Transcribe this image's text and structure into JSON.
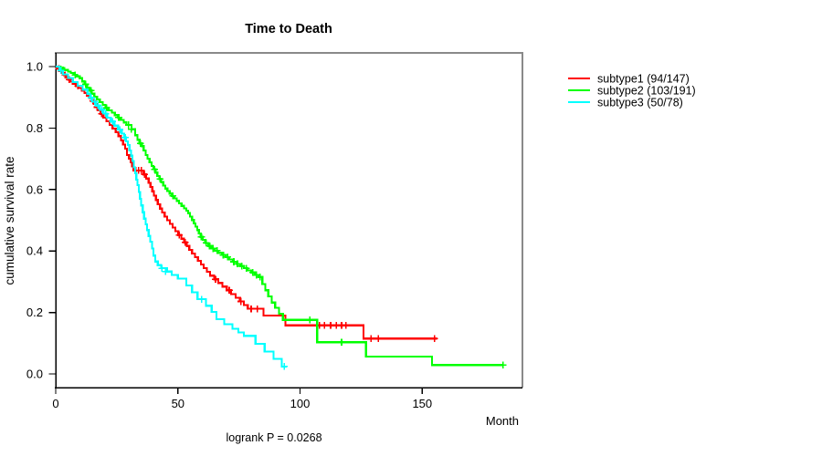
{
  "title": "Time to Death",
  "footer_note": "logrank P = 0.0268",
  "axes": {
    "x_label": "Month",
    "y_label": "cumulative survival rate",
    "x_tick_labels": [
      "0",
      "50",
      "100",
      "150"
    ],
    "x_tick_values": [
      0,
      50,
      100,
      150
    ],
    "y_tick_labels": [
      "0.0",
      "0.2",
      "0.4",
      "0.6",
      "0.8",
      "1.0"
    ],
    "y_tick_values": [
      0,
      0.2,
      0.4,
      0.6,
      0.8,
      1.0
    ]
  },
  "colors": {
    "subtype1": "#ff0000",
    "subtype2": "#00ff00",
    "subtype3": "#00ffff",
    "axis": "#000000",
    "box_top_right": "#898989",
    "background": "#ffffff"
  },
  "legend": {
    "items": [
      {
        "label": "subtype1 (94/147)",
        "color": "#ff0000"
      },
      {
        "label": "subtype2 (103/191)",
        "color": "#00ff00"
      },
      {
        "label": "subtype3 (50/78)",
        "color": "#00ffff"
      }
    ]
  },
  "chart_data": {
    "type": "line",
    "subtype": "kaplan_meier_step",
    "title": "Time to Death",
    "xlabel": "Month",
    "ylabel": "cumulative survival rate",
    "annotation": "logrank P = 0.0268",
    "xlim": [
      0,
      191
    ],
    "ylim": [
      0,
      1
    ],
    "grid": false,
    "legend_position": "right-outside",
    "series": [
      {
        "name": "subtype1 (94/147)",
        "events": 94,
        "n": 147,
        "color": "#ff0000",
        "steps": [
          [
            0,
            1.0
          ],
          [
            1,
            0.993
          ],
          [
            1.8,
            0.986
          ],
          [
            2.6,
            0.979
          ],
          [
            3.4,
            0.972
          ],
          [
            4.2,
            0.965
          ],
          [
            5,
            0.958
          ],
          [
            6,
            0.951
          ],
          [
            7,
            0.944
          ],
          [
            8.2,
            0.937
          ],
          [
            9.4,
            0.93
          ],
          [
            10.6,
            0.922
          ],
          [
            11.8,
            0.914
          ],
          [
            12.8,
            0.906
          ],
          [
            13.8,
            0.898
          ],
          [
            14.8,
            0.888
          ],
          [
            15.7,
            0.878
          ],
          [
            16.6,
            0.868
          ],
          [
            17.5,
            0.858
          ],
          [
            18.4,
            0.846
          ],
          [
            19.5,
            0.834
          ],
          [
            20.7,
            0.822
          ],
          [
            22,
            0.81
          ],
          [
            23.3,
            0.798
          ],
          [
            24.6,
            0.786
          ],
          [
            25.7,
            0.774
          ],
          [
            26.7,
            0.76
          ],
          [
            27.6,
            0.746
          ],
          [
            28.4,
            0.733
          ],
          [
            29.2,
            0.712
          ],
          [
            30,
            0.7
          ],
          [
            30.7,
            0.688
          ],
          [
            31.3,
            0.675
          ],
          [
            31.9,
            0.662
          ],
          [
            36,
            0.649
          ],
          [
            37,
            0.636
          ],
          [
            38,
            0.622
          ],
          [
            38.8,
            0.608
          ],
          [
            39.5,
            0.594
          ],
          [
            40.2,
            0.58
          ],
          [
            41,
            0.566
          ],
          [
            41.8,
            0.552
          ],
          [
            42.7,
            0.538
          ],
          [
            43.6,
            0.525
          ],
          [
            44.6,
            0.512
          ],
          [
            45.6,
            0.5
          ],
          [
            46.7,
            0.488
          ],
          [
            47.8,
            0.476
          ],
          [
            49,
            0.464
          ],
          [
            50.2,
            0.452
          ],
          [
            51.4,
            0.44
          ],
          [
            52.5,
            0.428
          ],
          [
            53.6,
            0.416
          ],
          [
            54.7,
            0.404
          ],
          [
            55.8,
            0.392
          ],
          [
            57,
            0.38
          ],
          [
            58.2,
            0.368
          ],
          [
            59.4,
            0.356
          ],
          [
            60.6,
            0.344
          ],
          [
            61.9,
            0.332
          ],
          [
            63.2,
            0.32
          ],
          [
            64.8,
            0.308
          ],
          [
            66.5,
            0.296
          ],
          [
            68.2,
            0.284
          ],
          [
            70,
            0.272
          ],
          [
            71.8,
            0.26
          ],
          [
            73.6,
            0.248
          ],
          [
            75.4,
            0.236
          ],
          [
            77,
            0.224
          ],
          [
            78.6,
            0.212
          ],
          [
            85,
            0.19
          ],
          [
            94,
            0.158
          ],
          [
            126,
            0.115
          ],
          [
            156,
            0.115
          ]
        ],
        "censors": [
          [
            1.3,
            0.993
          ],
          [
            3.8,
            0.972
          ],
          [
            5.5,
            0.958
          ],
          [
            9,
            0.937
          ],
          [
            15.2,
            0.888
          ],
          [
            17,
            0.868
          ],
          [
            18.8,
            0.846
          ],
          [
            32.8,
            0.662
          ],
          [
            33.9,
            0.662
          ],
          [
            35,
            0.662
          ],
          [
            36.4,
            0.649
          ],
          [
            50.6,
            0.452
          ],
          [
            53,
            0.428
          ],
          [
            65.4,
            0.308
          ],
          [
            71,
            0.272
          ],
          [
            75.8,
            0.236
          ],
          [
            80,
            0.212
          ],
          [
            82.5,
            0.212
          ],
          [
            108,
            0.158
          ],
          [
            110,
            0.158
          ],
          [
            112.5,
            0.158
          ],
          [
            114.8,
            0.158
          ],
          [
            117,
            0.158
          ],
          [
            118.8,
            0.158
          ],
          [
            129,
            0.115
          ],
          [
            132,
            0.115
          ],
          [
            155,
            0.115
          ]
        ]
      },
      {
        "name": "subtype2 (103/191)",
        "events": 103,
        "n": 191,
        "color": "#00ff00",
        "steps": [
          [
            0,
            1.0
          ],
          [
            2,
            0.995
          ],
          [
            3.5,
            0.989
          ],
          [
            5,
            0.984
          ],
          [
            6.2,
            0.979
          ],
          [
            7.4,
            0.973
          ],
          [
            8.6,
            0.968
          ],
          [
            9.8,
            0.962
          ],
          [
            10.8,
            0.952
          ],
          [
            11.8,
            0.942
          ],
          [
            12.8,
            0.932
          ],
          [
            13.8,
            0.922
          ],
          [
            14.8,
            0.912
          ],
          [
            15.8,
            0.902
          ],
          [
            16.9,
            0.893
          ],
          [
            18,
            0.884
          ],
          [
            19.2,
            0.875
          ],
          [
            20.4,
            0.866
          ],
          [
            21.6,
            0.858
          ],
          [
            23,
            0.85
          ],
          [
            24.2,
            0.842
          ],
          [
            25.4,
            0.834
          ],
          [
            26.6,
            0.826
          ],
          [
            27.8,
            0.818
          ],
          [
            29,
            0.81
          ],
          [
            31,
            0.796
          ],
          [
            32.5,
            0.777
          ],
          [
            33.4,
            0.762
          ],
          [
            34.3,
            0.75
          ],
          [
            35.2,
            0.741
          ],
          [
            36,
            0.727
          ],
          [
            36.8,
            0.712
          ],
          [
            37.6,
            0.7
          ],
          [
            38.4,
            0.688
          ],
          [
            39.2,
            0.677
          ],
          [
            40,
            0.666
          ],
          [
            40.8,
            0.655
          ],
          [
            41.6,
            0.644
          ],
          [
            42.4,
            0.634
          ],
          [
            43.2,
            0.624
          ],
          [
            44,
            0.613
          ],
          [
            44.8,
            0.603
          ],
          [
            45.7,
            0.595
          ],
          [
            46.6,
            0.587
          ],
          [
            47.5,
            0.579
          ],
          [
            48.5,
            0.571
          ],
          [
            49.5,
            0.563
          ],
          [
            50.5,
            0.555
          ],
          [
            51.5,
            0.547
          ],
          [
            52.5,
            0.539
          ],
          [
            53.4,
            0.531
          ],
          [
            54.2,
            0.523
          ],
          [
            55,
            0.512
          ],
          [
            55.8,
            0.501
          ],
          [
            56.5,
            0.49
          ],
          [
            57.2,
            0.479
          ],
          [
            57.9,
            0.468
          ],
          [
            58.6,
            0.457
          ],
          [
            59.3,
            0.446
          ],
          [
            60.2,
            0.436
          ],
          [
            61.2,
            0.426
          ],
          [
            62.4,
            0.416
          ],
          [
            63.6,
            0.408
          ],
          [
            65,
            0.401
          ],
          [
            66.5,
            0.394
          ],
          [
            68,
            0.387
          ],
          [
            69.5,
            0.38
          ],
          [
            71,
            0.372
          ],
          [
            72.5,
            0.365
          ],
          [
            74,
            0.358
          ],
          [
            75.5,
            0.351
          ],
          [
            77,
            0.344
          ],
          [
            78.5,
            0.337
          ],
          [
            80,
            0.33
          ],
          [
            81.5,
            0.322
          ],
          [
            83,
            0.315
          ],
          [
            84.6,
            0.292
          ],
          [
            85.8,
            0.272
          ],
          [
            87,
            0.252
          ],
          [
            88.4,
            0.232
          ],
          [
            89.8,
            0.215
          ],
          [
            91.4,
            0.196
          ],
          [
            93,
            0.176
          ],
          [
            107,
            0.103
          ],
          [
            127,
            0.056
          ],
          [
            154,
            0.029
          ],
          [
            183,
            0.029
          ]
        ],
        "censors": [
          [
            3,
            0.989
          ],
          [
            8,
            0.973
          ],
          [
            12.3,
            0.942
          ],
          [
            14.4,
            0.922
          ],
          [
            20.8,
            0.866
          ],
          [
            25.8,
            0.834
          ],
          [
            29.8,
            0.81
          ],
          [
            31,
            0.796
          ],
          [
            34.7,
            0.75
          ],
          [
            40.4,
            0.666
          ],
          [
            42.7,
            0.634
          ],
          [
            47.9,
            0.579
          ],
          [
            59.6,
            0.446
          ],
          [
            61.6,
            0.426
          ],
          [
            63,
            0.416
          ],
          [
            64.4,
            0.408
          ],
          [
            66,
            0.401
          ],
          [
            68.6,
            0.387
          ],
          [
            70.3,
            0.38
          ],
          [
            72.9,
            0.365
          ],
          [
            74.4,
            0.358
          ],
          [
            76.2,
            0.351
          ],
          [
            78,
            0.344
          ],
          [
            80.6,
            0.33
          ],
          [
            82.2,
            0.322
          ],
          [
            83.6,
            0.315
          ],
          [
            104,
            0.176
          ],
          [
            117,
            0.103
          ],
          [
            183,
            0.029
          ]
        ]
      },
      {
        "name": "subtype3 (50/78)",
        "events": 50,
        "n": 78,
        "color": "#00ffff",
        "steps": [
          [
            0,
            1.0
          ],
          [
            1.5,
            0.987
          ],
          [
            3,
            0.975
          ],
          [
            5,
            0.963
          ],
          [
            7,
            0.95
          ],
          [
            9,
            0.938
          ],
          [
            11,
            0.925
          ],
          [
            13,
            0.912
          ],
          [
            14,
            0.899
          ],
          [
            15,
            0.886
          ],
          [
            16.5,
            0.873
          ],
          [
            18,
            0.86
          ],
          [
            19.5,
            0.847
          ],
          [
            21,
            0.834
          ],
          [
            22.5,
            0.821
          ],
          [
            24,
            0.808
          ],
          [
            25.5,
            0.795
          ],
          [
            27,
            0.782
          ],
          [
            28,
            0.769
          ],
          [
            28.8,
            0.757
          ],
          [
            29.5,
            0.745
          ],
          [
            30.2,
            0.727
          ],
          [
            30.8,
            0.71
          ],
          [
            31.4,
            0.693
          ],
          [
            32,
            0.672
          ],
          [
            32.5,
            0.653
          ],
          [
            33,
            0.632
          ],
          [
            33.5,
            0.614
          ],
          [
            34,
            0.592
          ],
          [
            34.5,
            0.57
          ],
          [
            35,
            0.548
          ],
          [
            35.6,
            0.526
          ],
          [
            36.2,
            0.505
          ],
          [
            36.8,
            0.487
          ],
          [
            37.4,
            0.468
          ],
          [
            38,
            0.449
          ],
          [
            38.7,
            0.43
          ],
          [
            39.4,
            0.408
          ],
          [
            40,
            0.385
          ],
          [
            40.7,
            0.366
          ],
          [
            41.8,
            0.354
          ],
          [
            43.2,
            0.344
          ],
          [
            45.5,
            0.333
          ],
          [
            47.5,
            0.322
          ],
          [
            50,
            0.31
          ],
          [
            53.5,
            0.288
          ],
          [
            55.8,
            0.266
          ],
          [
            58,
            0.243
          ],
          [
            61.5,
            0.222
          ],
          [
            63.8,
            0.202
          ],
          [
            65.8,
            0.178
          ],
          [
            69,
            0.162
          ],
          [
            72.3,
            0.147
          ],
          [
            74.8,
            0.135
          ],
          [
            77,
            0.124
          ],
          [
            81.8,
            0.098
          ],
          [
            85.5,
            0.073
          ],
          [
            89.2,
            0.049
          ],
          [
            92.5,
            0.024
          ],
          [
            94.5,
            0.024
          ]
        ],
        "censors": [
          [
            2.2,
            0.987
          ],
          [
            14.5,
            0.899
          ],
          [
            16,
            0.886
          ],
          [
            17.3,
            0.873
          ],
          [
            19,
            0.86
          ],
          [
            20.4,
            0.847
          ],
          [
            23.2,
            0.821
          ],
          [
            26.2,
            0.795
          ],
          [
            28.4,
            0.769
          ],
          [
            43.5,
            0.344
          ],
          [
            45,
            0.333
          ],
          [
            59.7,
            0.243
          ],
          [
            93.5,
            0.024
          ]
        ]
      }
    ]
  }
}
